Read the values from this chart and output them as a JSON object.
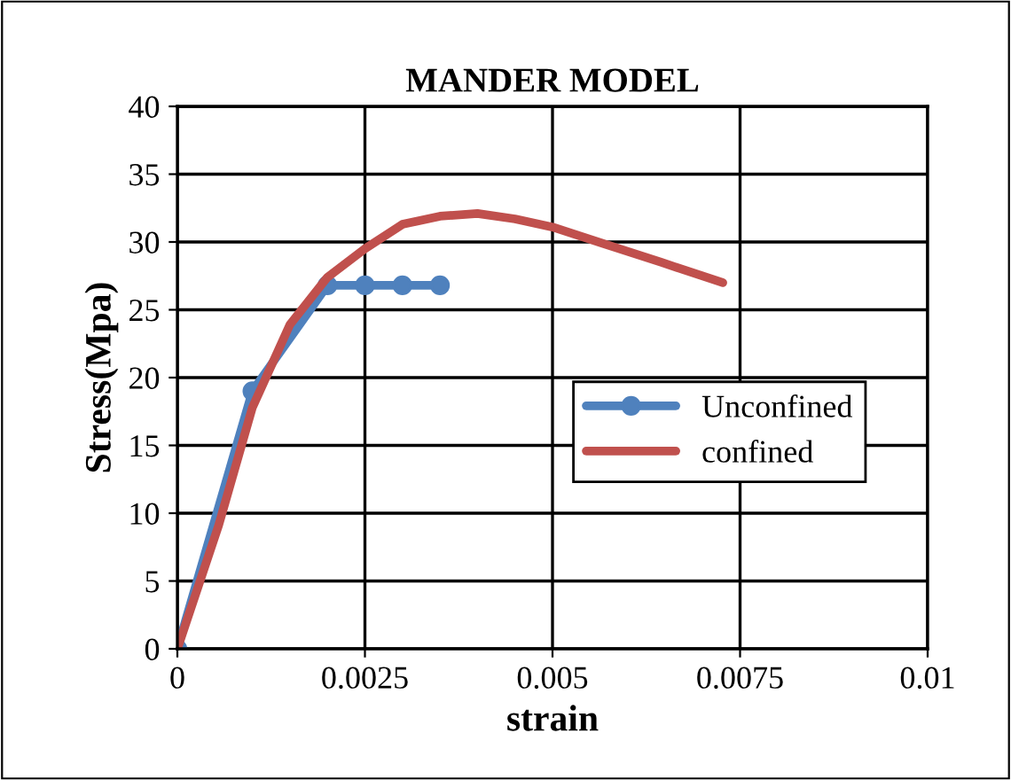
{
  "chart_data": {
    "type": "line",
    "title": "MANDER MODEL",
    "xlabel": "strain",
    "ylabel": "Stress(Mpa)",
    "xlim": [
      0,
      0.01
    ],
    "xticks": [
      0,
      0.0025,
      0.005,
      0.0075,
      0.01
    ],
    "ylim": [
      0,
      40
    ],
    "yticks": [
      0,
      5,
      10,
      15,
      20,
      25,
      30,
      35,
      40
    ],
    "grid": true,
    "legend": "right",
    "line_style": "solid",
    "series": [
      {
        "name": "Unconfined",
        "color": "#4f81bd",
        "marker": "circle",
        "x": [
          0,
          0.001,
          0.002,
          0.0025,
          0.003,
          0.0035
        ],
        "values": [
          0,
          19,
          26.8,
          26.8,
          26.8,
          26.8
        ]
      },
      {
        "name": "confined",
        "color": "#c0504d",
        "marker": "none",
        "x": [
          0,
          0.00055,
          0.001,
          0.0015,
          0.002,
          0.0025,
          0.003,
          0.0035,
          0.004,
          0.0045,
          0.005,
          0.00567,
          0.00645,
          0.00727
        ],
        "values": [
          0,
          9.1,
          17.8,
          23.9,
          27.4,
          29.5,
          31.3,
          31.9,
          32.1,
          31.7,
          31.1,
          29.9,
          28.5,
          27.0
        ]
      }
    ]
  }
}
